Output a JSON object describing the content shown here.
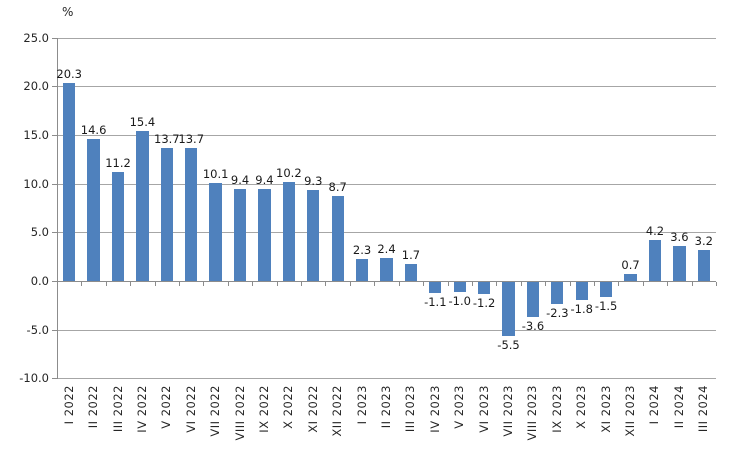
{
  "chart_data": {
    "type": "bar",
    "title": "",
    "xlabel": "",
    "ylabel": "%",
    "ylim": [
      -10,
      25
    ],
    "ytick_step": 5,
    "ytick_labels": [
      "25.0",
      "20.0",
      "15.0",
      "10.0",
      "5.0",
      "0.0",
      "-5.0",
      "-10.0"
    ],
    "grid": true,
    "legend_position": "none",
    "categories": [
      "I 2022",
      "II 2022",
      "III 2022",
      "IV 2022",
      "V 2022",
      "VI 2022",
      "VII 2022",
      "VIII 2022",
      "IX 2022",
      "X 2022",
      "XI 2022",
      "XII 2022",
      "I 2023",
      "II 2023",
      "III 2023",
      "IV 2023",
      "V 2023",
      "VI 2023",
      "VII 2023",
      "VIII 2023",
      "IX 2023",
      "X 2023",
      "XI 2023",
      "XII 2023",
      "I 2024",
      "II 2024",
      "III 2024"
    ],
    "values": [
      20.3,
      14.6,
      11.2,
      15.4,
      13.7,
      13.7,
      10.1,
      9.4,
      9.4,
      10.2,
      9.3,
      8.7,
      2.3,
      2.4,
      1.7,
      -1.1,
      -1.0,
      -1.2,
      -5.5,
      -3.6,
      -2.3,
      -1.8,
      -1.5,
      0.7,
      4.2,
      3.6,
      3.2
    ],
    "value_labels": [
      "20.3",
      "14.6",
      "11.2",
      "15.4",
      "13.7",
      "13.7",
      "10.1",
      "9.4",
      "9.4",
      "10.2",
      "9.3",
      "8.7",
      "2.3",
      "2.4",
      "1.7",
      "-1.1",
      "-1.0",
      "-1.2",
      "-5.5",
      "-3.6",
      "-2.3",
      "-1.8",
      "-1.5",
      "0.7",
      "4.2",
      "3.6",
      "3.2"
    ],
    "colors": {
      "bar": "#4f81bd",
      "gridline": "#a6a6a6",
      "axis": "#8c8c8c",
      "text": "#262626"
    }
  }
}
